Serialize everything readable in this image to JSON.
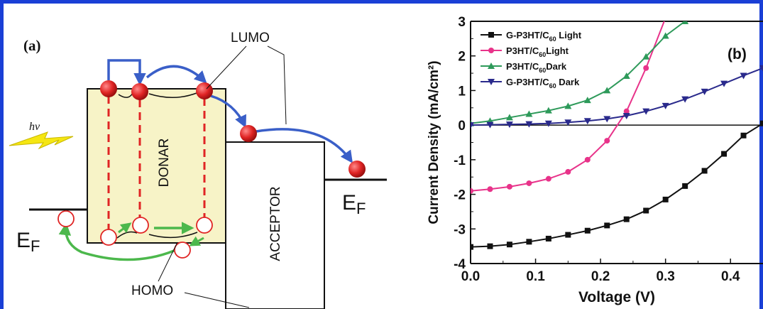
{
  "figure": {
    "frame_color": "#1a3fd6"
  },
  "panel_a": {
    "label": "(a)",
    "lumo_label": "LUMO",
    "homo_label": "HOMO",
    "donor_label": "DONAR",
    "acceptor_label": "ACCEPTOR",
    "ef_left_main": "E",
    "ef_left_sub": "F",
    "ef_right_main": "E",
    "ef_right_sub": "F",
    "hv_label": "hv",
    "colors": {
      "donor_fill": "#f7f3c7",
      "electron": "#e02424",
      "transfer_arrow": "#3a5fc8",
      "hole_arrow": "#4cb84c",
      "bolt": "#f5e612",
      "excitation_line": "#e02424"
    }
  },
  "panel_b": {
    "label": "(b)"
  },
  "chart_data": {
    "type": "line",
    "xlabel": "Voltage (V)",
    "ylabel": "Current Density (mA/cm²)",
    "xlim": [
      0.0,
      0.45
    ],
    "ylim": [
      -4,
      3
    ],
    "xticks": [
      0.0,
      0.1,
      0.2,
      0.3,
      0.4
    ],
    "xtick_labels": [
      "0.0",
      "0.1",
      "0.2",
      "0.3",
      "0.4"
    ],
    "yticks": [
      -4,
      -3,
      -2,
      -1,
      0,
      1,
      2,
      3
    ],
    "ytick_labels": [
      "-4",
      "-3",
      "-2",
      "-1",
      "0",
      "1",
      "2",
      "3"
    ],
    "zero_line": true,
    "grid": false,
    "legend_position": "top-left",
    "series": [
      {
        "name": "G-P3HT/C60 Light",
        "legend_main": "G-P3HT/C",
        "legend_sub": "60",
        "legend_tail": " Light",
        "color": "#111111",
        "marker": "square",
        "x": [
          0.0,
          0.03,
          0.06,
          0.09,
          0.12,
          0.15,
          0.18,
          0.21,
          0.24,
          0.27,
          0.3,
          0.33,
          0.36,
          0.39,
          0.42,
          0.45
        ],
        "y": [
          -3.52,
          -3.5,
          -3.45,
          -3.37,
          -3.28,
          -3.17,
          -3.05,
          -2.9,
          -2.72,
          -2.47,
          -2.15,
          -1.76,
          -1.32,
          -0.83,
          -0.3,
          0.05
        ]
      },
      {
        "name": "P3HT/C60 Light",
        "legend_main": "P3HT/C",
        "legend_sub": "60",
        "legend_tail": "Light",
        "color": "#e8338a",
        "marker": "circle",
        "x": [
          0.0,
          0.03,
          0.06,
          0.09,
          0.12,
          0.15,
          0.18,
          0.21,
          0.24,
          0.27,
          0.3
        ],
        "y": [
          -1.9,
          -1.85,
          -1.78,
          -1.68,
          -1.55,
          -1.35,
          -1.0,
          -0.45,
          0.4,
          1.65,
          3.1
        ]
      },
      {
        "name": "P3HT/C60 Dark",
        "legend_main": "P3HT/C",
        "legend_sub": "60",
        "legend_tail": "Dark",
        "color": "#2e9a5a",
        "marker": "triangle-up",
        "x": [
          0.0,
          0.03,
          0.06,
          0.09,
          0.12,
          0.15,
          0.18,
          0.21,
          0.24,
          0.27,
          0.3,
          0.33
        ],
        "y": [
          0.05,
          0.12,
          0.22,
          0.32,
          0.42,
          0.55,
          0.72,
          1.0,
          1.42,
          1.98,
          2.58,
          3.0
        ]
      },
      {
        "name": "G-P3HT/C60 Dark",
        "legend_main": "G-P3HT/C",
        "legend_sub": "60",
        "legend_tail": " Dark",
        "color": "#2a2a8c",
        "marker": "triangle-down",
        "x": [
          0.0,
          0.03,
          0.06,
          0.09,
          0.12,
          0.15,
          0.18,
          0.21,
          0.24,
          0.27,
          0.3,
          0.33,
          0.36,
          0.39,
          0.42,
          0.45
        ],
        "y": [
          0.0,
          0.01,
          0.02,
          0.03,
          0.05,
          0.08,
          0.12,
          0.18,
          0.27,
          0.4,
          0.56,
          0.75,
          0.97,
          1.2,
          1.43,
          1.65
        ]
      }
    ]
  }
}
